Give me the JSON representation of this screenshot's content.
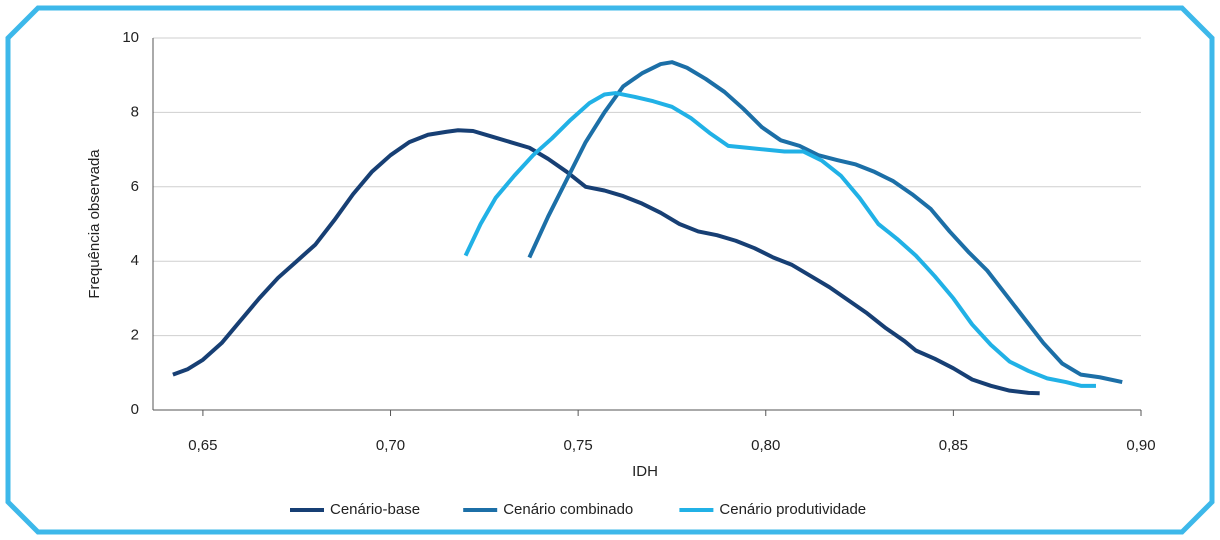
{
  "chart_data": {
    "type": "line",
    "x_label": "IDH",
    "y_label": "Frequência observada",
    "xlim": [
      0.6367,
      0.9
    ],
    "ylim": [
      0,
      10
    ],
    "xticks": [
      {
        "value": 0.65,
        "label": "0,65"
      },
      {
        "value": 0.7,
        "label": "0,70"
      },
      {
        "value": 0.75,
        "label": "0,75"
      },
      {
        "value": 0.8,
        "label": "0,80"
      },
      {
        "value": 0.85,
        "label": "0,85"
      },
      {
        "value": 0.9,
        "label": "0,90"
      }
    ],
    "yticks": [
      0,
      2,
      4,
      6,
      8,
      10
    ],
    "grid": true,
    "legend": "bottom",
    "series": [
      {
        "name": "Cenário-base",
        "color": "#173f74",
        "x": [
          0.642,
          0.646,
          0.65,
          0.655,
          0.66,
          0.665,
          0.67,
          0.675,
          0.68,
          0.685,
          0.69,
          0.695,
          0.7,
          0.705,
          0.71,
          0.715,
          0.718,
          0.722,
          0.727,
          0.732,
          0.737,
          0.742,
          0.747,
          0.752,
          0.757,
          0.762,
          0.767,
          0.772,
          0.777,
          0.782,
          0.787,
          0.792,
          0.797,
          0.802,
          0.807,
          0.812,
          0.817,
          0.822,
          0.827,
          0.832,
          0.837,
          0.84,
          0.845,
          0.85,
          0.855,
          0.86,
          0.865,
          0.87,
          0.873
        ],
        "values": [
          0.95,
          1.1,
          1.35,
          1.8,
          2.4,
          3.0,
          3.55,
          4.0,
          4.45,
          5.1,
          5.8,
          6.4,
          6.85,
          7.2,
          7.4,
          7.48,
          7.52,
          7.5,
          7.35,
          7.2,
          7.05,
          6.75,
          6.4,
          6.0,
          5.9,
          5.75,
          5.55,
          5.3,
          5.0,
          4.8,
          4.7,
          4.55,
          4.35,
          4.1,
          3.9,
          3.6,
          3.3,
          2.95,
          2.6,
          2.2,
          1.85,
          1.6,
          1.38,
          1.12,
          0.82,
          0.65,
          0.52,
          0.46,
          0.45
        ]
      },
      {
        "name": "Cenário combinado",
        "color": "#1c6fa7",
        "x": [
          0.737,
          0.742,
          0.747,
          0.752,
          0.757,
          0.762,
          0.767,
          0.772,
          0.775,
          0.779,
          0.784,
          0.789,
          0.794,
          0.799,
          0.804,
          0.809,
          0.814,
          0.819,
          0.824,
          0.829,
          0.834,
          0.839,
          0.844,
          0.849,
          0.854,
          0.859,
          0.864,
          0.869,
          0.874,
          0.879,
          0.884,
          0.889,
          0.895
        ],
        "values": [
          4.1,
          5.2,
          6.2,
          7.2,
          8.0,
          8.7,
          9.05,
          9.3,
          9.35,
          9.2,
          8.9,
          8.55,
          8.1,
          7.6,
          7.25,
          7.1,
          6.85,
          6.72,
          6.6,
          6.4,
          6.15,
          5.8,
          5.4,
          4.8,
          4.25,
          3.75,
          3.1,
          2.45,
          1.8,
          1.25,
          0.95,
          0.88,
          0.75
        ]
      },
      {
        "name": "Cenário produtividade",
        "color": "#21b1e6",
        "x": [
          0.72,
          0.724,
          0.728,
          0.733,
          0.738,
          0.743,
          0.748,
          0.753,
          0.757,
          0.76,
          0.765,
          0.77,
          0.775,
          0.78,
          0.785,
          0.79,
          0.795,
          0.8,
          0.805,
          0.81,
          0.815,
          0.82,
          0.825,
          0.83,
          0.835,
          0.84,
          0.845,
          0.85,
          0.855,
          0.86,
          0.865,
          0.87,
          0.875,
          0.88,
          0.884,
          0.888
        ],
        "values": [
          4.15,
          5.0,
          5.7,
          6.3,
          6.85,
          7.3,
          7.8,
          8.25,
          8.48,
          8.52,
          8.42,
          8.3,
          8.15,
          7.85,
          7.45,
          7.1,
          7.05,
          7.0,
          6.95,
          6.95,
          6.7,
          6.3,
          5.7,
          5.0,
          4.6,
          4.15,
          3.6,
          3.0,
          2.3,
          1.75,
          1.3,
          1.05,
          0.85,
          0.75,
          0.65,
          0.65
        ]
      }
    ]
  }
}
